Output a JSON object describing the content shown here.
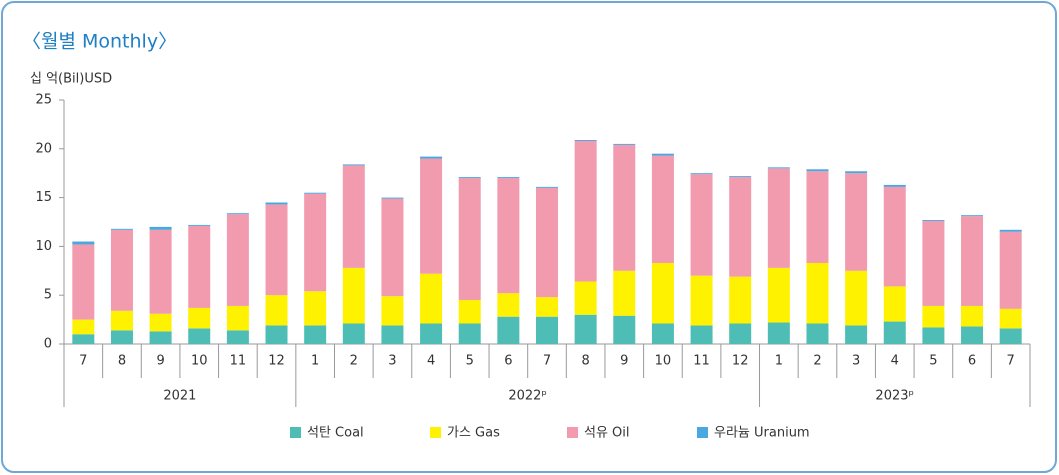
{
  "chart_data": {
    "type": "stacked_bar",
    "title": "〈월별 Monthly〉",
    "y_label": "십 억(Bil)USD",
    "groups": [
      {
        "label": "2021",
        "categories": [
          "7",
          "8",
          "9",
          "10",
          "11",
          "12"
        ]
      },
      {
        "label": "2022ᵖ",
        "categories": [
          "1",
          "2",
          "3",
          "4",
          "5",
          "6",
          "7",
          "8",
          "9",
          "10",
          "11",
          "12"
        ]
      },
      {
        "label": "2023ᵖ",
        "categories": [
          "1",
          "2",
          "3",
          "4",
          "5",
          "6",
          "7"
        ]
      }
    ],
    "series": [
      {
        "name": "석탄 Coal",
        "color": "#4dbdb5",
        "values": [
          1.0,
          1.4,
          1.3,
          1.6,
          1.4,
          1.9,
          1.9,
          2.1,
          1.9,
          2.1,
          2.1,
          2.8,
          2.8,
          3.0,
          2.9,
          2.1,
          1.9,
          2.1,
          2.2,
          2.1,
          1.9,
          2.3,
          1.7,
          1.8,
          1.6
        ]
      },
      {
        "name": "가스 Gas",
        "color": "#fff200",
        "values": [
          1.5,
          2.0,
          1.8,
          2.1,
          2.5,
          3.1,
          3.5,
          5.7,
          3.0,
          5.1,
          2.4,
          2.4,
          2.0,
          3.4,
          4.6,
          6.2,
          5.1,
          4.8,
          5.6,
          6.2,
          5.6,
          3.6,
          2.2,
          2.1,
          2.0
        ]
      },
      {
        "name": "석유 Oil",
        "color": "#f29bae",
        "values": [
          7.7,
          8.3,
          8.6,
          8.4,
          9.4,
          9.3,
          10.0,
          10.5,
          10.0,
          11.8,
          12.5,
          11.8,
          11.2,
          14.4,
          12.9,
          11.0,
          10.4,
          10.2,
          10.2,
          9.4,
          10.0,
          10.2,
          8.7,
          9.2,
          7.9
        ]
      },
      {
        "name": "우라늄 Uranium",
        "color": "#4aa8e0",
        "values": [
          0.3,
          0.1,
          0.3,
          0.1,
          0.1,
          0.2,
          0.1,
          0.1,
          0.1,
          0.2,
          0.1,
          0.1,
          0.1,
          0.1,
          0.1,
          0.2,
          0.1,
          0.1,
          0.1,
          0.2,
          0.2,
          0.2,
          0.1,
          0.1,
          0.2
        ]
      }
    ],
    "ylim": [
      0,
      25
    ],
    "yticks": [
      0,
      5,
      10,
      15,
      20,
      25
    ],
    "grid": false,
    "legend": "bottom"
  }
}
